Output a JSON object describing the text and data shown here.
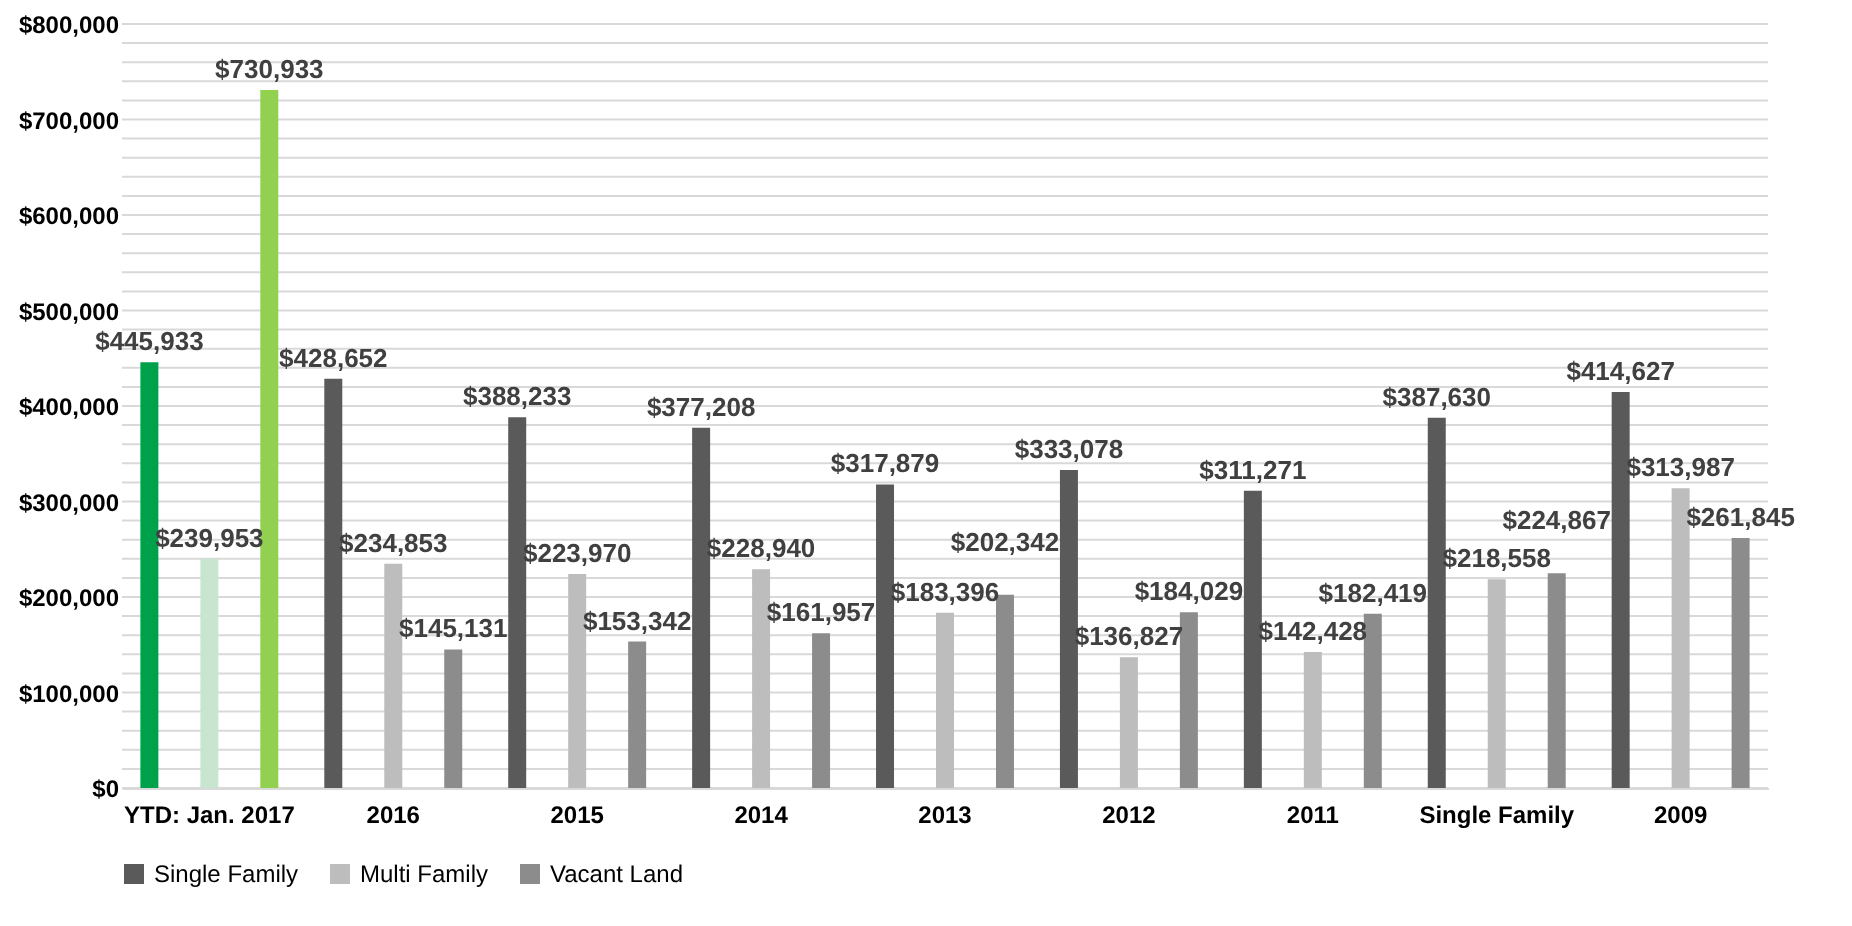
{
  "chart_data": {
    "type": "bar",
    "categories": [
      "YTD: Jan. 2017",
      "2016",
      "2015",
      "2014",
      "2013",
      "2012",
      "2011",
      "Single Family",
      "2009"
    ],
    "series": [
      {
        "name": "Single Family",
        "color": "#5a5a5a",
        "colors": [
          "#00a14b",
          "#5a5a5a",
          "#5a5a5a",
          "#5a5a5a",
          "#5a5a5a",
          "#5a5a5a",
          "#5a5a5a",
          "#5a5a5a",
          "#5a5a5a"
        ],
        "values": [
          445933,
          428652,
          388233,
          377208,
          317879,
          333078,
          311271,
          387630,
          414627
        ],
        "value_labels": [
          "$445,933",
          "$428,652",
          "$388,233",
          "$377,208",
          "$317,879",
          "$333,078",
          "$311,271",
          "$387,630",
          "$414,627"
        ]
      },
      {
        "name": "Multi Family",
        "color": "#bdbdbd",
        "colors": [
          "#c8e6cf",
          "#bdbdbd",
          "#bdbdbd",
          "#bdbdbd",
          "#bdbdbd",
          "#bdbdbd",
          "#bdbdbd",
          "#bdbdbd",
          "#bdbdbd"
        ],
        "values": [
          239953,
          234853,
          223970,
          228940,
          183396,
          136827,
          142428,
          218558,
          313987
        ],
        "value_labels": [
          "$239,953",
          "$234,853",
          "$223,970",
          "$228,940",
          "$183,396",
          "$136,827",
          "$142,428",
          "$218,558",
          "$313,987"
        ]
      },
      {
        "name": "Vacant Land",
        "color": "#8c8c8c",
        "colors": [
          "#92d050",
          "#8c8c8c",
          "#8c8c8c",
          "#8c8c8c",
          "#8c8c8c",
          "#8c8c8c",
          "#8c8c8c",
          "#8c8c8c",
          "#8c8c8c"
        ],
        "values": [
          730933,
          145131,
          153342,
          161957,
          202342,
          184029,
          182419,
          224867,
          261845
        ],
        "value_labels": [
          "$730,933",
          "$145,131",
          "$153,342",
          "$161,957",
          "$202,342",
          "$184,029",
          "$182,419",
          "$224,867",
          "$261,845"
        ]
      }
    ],
    "ylim": [
      0,
      800000
    ],
    "yticks": [
      {
        "value": 0,
        "label": "$0"
      },
      {
        "value": 20000,
        "label": null
      },
      {
        "value": 40000,
        "label": null
      },
      {
        "value": 60000,
        "label": null
      },
      {
        "value": 80000,
        "label": null
      },
      {
        "value": 100000,
        "label": "$100,000"
      },
      {
        "value": 120000,
        "label": null
      },
      {
        "value": 140000,
        "label": null
      },
      {
        "value": 160000,
        "label": null
      },
      {
        "value": 180000,
        "label": null
      },
      {
        "value": 200000,
        "label": "$200,000"
      },
      {
        "value": 220000,
        "label": null
      },
      {
        "value": 240000,
        "label": null
      },
      {
        "value": 260000,
        "label": null
      },
      {
        "value": 280000,
        "label": null
      },
      {
        "value": 300000,
        "label": "$300,000"
      },
      {
        "value": 320000,
        "label": null
      },
      {
        "value": 340000,
        "label": null
      },
      {
        "value": 360000,
        "label": null
      },
      {
        "value": 380000,
        "label": null
      },
      {
        "value": 400000,
        "label": "$400,000"
      },
      {
        "value": 420000,
        "label": null
      },
      {
        "value": 440000,
        "label": null
      },
      {
        "value": 460000,
        "label": null
      },
      {
        "value": 480000,
        "label": null
      },
      {
        "value": 500000,
        "label": "$500,000"
      },
      {
        "value": 520000,
        "label": null
      },
      {
        "value": 540000,
        "label": null
      },
      {
        "value": 560000,
        "label": null
      },
      {
        "value": 580000,
        "label": null
      },
      {
        "value": 600000,
        "label": "$600,000"
      },
      {
        "value": 620000,
        "label": null
      },
      {
        "value": 640000,
        "label": null
      },
      {
        "value": 660000,
        "label": null
      },
      {
        "value": 680000,
        "label": null
      },
      {
        "value": 700000,
        "label": "$700,000"
      },
      {
        "value": 720000,
        "label": null
      },
      {
        "value": 740000,
        "label": null
      },
      {
        "value": 760000,
        "label": null
      },
      {
        "value": 780000,
        "label": null
      },
      {
        "value": 800000,
        "label": "$800,000"
      }
    ],
    "grid": "y",
    "legend": "bottom"
  }
}
